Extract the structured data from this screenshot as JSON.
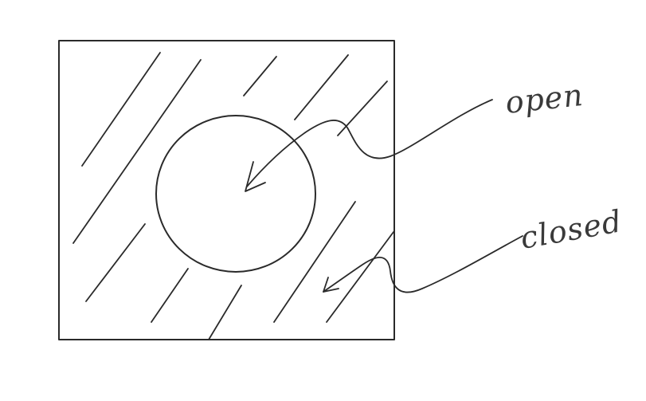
{
  "labels": {
    "open": "open",
    "closed": "closed"
  },
  "colors": {
    "ink": "#2a2a2a",
    "background": "#ffffff"
  }
}
